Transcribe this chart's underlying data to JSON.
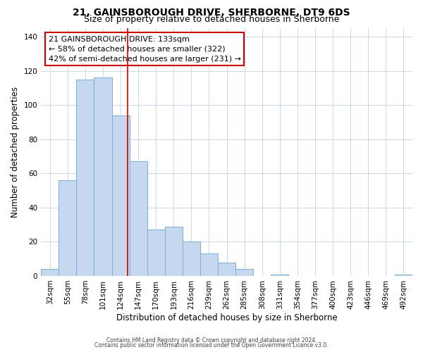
{
  "title": "21, GAINSBOROUGH DRIVE, SHERBORNE, DT9 6DS",
  "subtitle": "Size of property relative to detached houses in Sherborne",
  "xlabel": "Distribution of detached houses by size in Sherborne",
  "ylabel": "Number of detached properties",
  "bar_labels": [
    "32sqm",
    "55sqm",
    "78sqm",
    "101sqm",
    "124sqm",
    "147sqm",
    "170sqm",
    "193sqm",
    "216sqm",
    "239sqm",
    "262sqm",
    "285sqm",
    "308sqm",
    "331sqm",
    "354sqm",
    "377sqm",
    "400sqm",
    "423sqm",
    "446sqm",
    "469sqm",
    "492sqm"
  ],
  "bar_values": [
    4,
    56,
    115,
    116,
    94,
    67,
    27,
    29,
    20,
    13,
    8,
    4,
    0,
    1,
    0,
    0,
    0,
    0,
    0,
    0,
    1
  ],
  "bar_color": "#C5D8EF",
  "bar_edgecolor": "#7BAFD4",
  "ylim": [
    0,
    145
  ],
  "yticks": [
    0,
    20,
    40,
    60,
    80,
    100,
    120,
    140
  ],
  "vline_color": "#CC0000",
  "annotation_title": "21 GAINSBOROUGH DRIVE: 133sqm",
  "annotation_line1": "← 58% of detached houses are smaller (322)",
  "annotation_line2": "42% of semi-detached houses are larger (231) →",
  "annotation_box_edgecolor": "#CC0000",
  "footer_line1": "Contains HM Land Registry data © Crown copyright and database right 2024.",
  "footer_line2": "Contains public sector information licensed under the Open Government Licence v3.0.",
  "background_color": "#FFFFFF",
  "grid_color": "#C8D8E8",
  "title_fontsize": 10,
  "subtitle_fontsize": 9,
  "axis_label_fontsize": 8.5,
  "tick_fontsize": 7.5,
  "annotation_fontsize": 8,
  "footer_fontsize": 5.5
}
